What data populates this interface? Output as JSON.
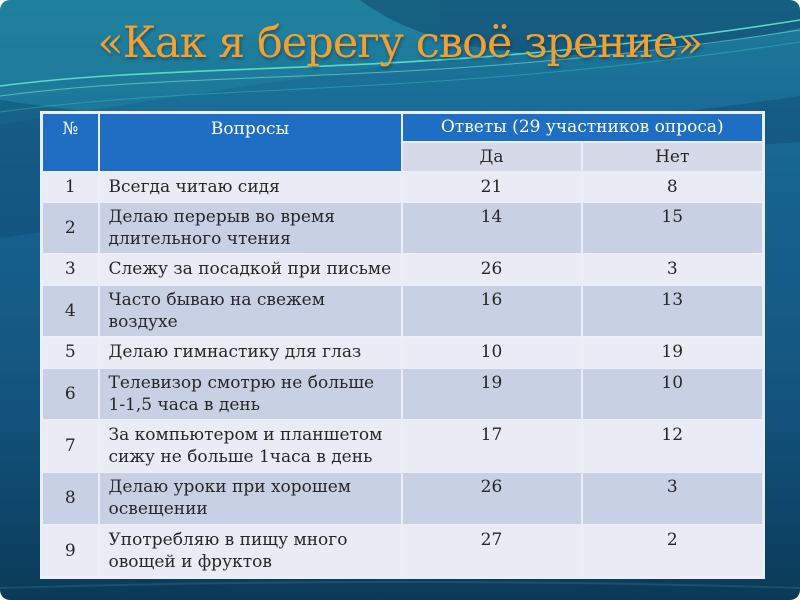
{
  "slide": {
    "title": "«Как я берегу своё зрение»"
  },
  "table": {
    "headers": {
      "number": "№",
      "questions": "Вопросы",
      "answers": "Ответы (29 участников опроса)",
      "yes": "Да",
      "no": "Нет"
    },
    "rows": [
      {
        "num": "1",
        "question": "Всегда читаю сидя",
        "yes": "21",
        "no": "8"
      },
      {
        "num": "2",
        "question": "Делаю перерыв во время\nдлительного чтения",
        "yes": "14",
        "no": "15"
      },
      {
        "num": "3",
        "question": "Слежу за посадкой при письме",
        "yes": "26",
        "no": "3"
      },
      {
        "num": "4",
        "question": "Часто бываю на свежем воздухе",
        "yes": "16",
        "no": "13"
      },
      {
        "num": "5",
        "question": "Делаю гимнастику для глаз",
        "yes": "10",
        "no": "19"
      },
      {
        "num": "6",
        "question": "Телевизор смотрю не больше\n1-1,5 часа в день",
        "yes": "19",
        "no": "10"
      },
      {
        "num": "7",
        "question": "За компьютером и планшетом\nсижу не больше 1часа в день",
        "yes": "17",
        "no": "12"
      },
      {
        "num": "8",
        "question": "Делаю уроки при хорошем\nосвещении",
        "yes": "26",
        "no": "3"
      },
      {
        "num": "9",
        "question": "Употребляю в пищу много\nовощей и фруктов",
        "yes": "27",
        "no": "2"
      }
    ]
  },
  "colors": {
    "title_orange": "#F0A132",
    "header_blue": "#1E6FC4",
    "header_text": "#FFFFFF",
    "subheader_bg": "#D6DAE8",
    "row_light": "#EAECF5",
    "row_alt": "#C8D1E4",
    "border_light": "#EBEEF7",
    "text_dark": "#262626"
  }
}
